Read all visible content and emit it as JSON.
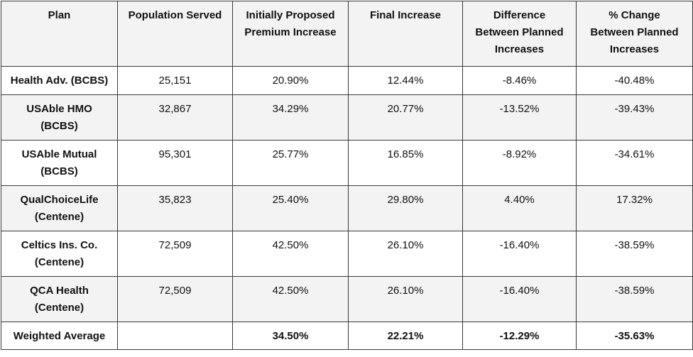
{
  "table": {
    "header": [
      "Plan",
      "Population Served",
      "Initially Proposed\nPremium Increase",
      "Final Increase",
      "Difference\nBetween Planned\nIncreases",
      "% Change\nBetween Planned\nIncreases"
    ],
    "rows": [
      [
        "Health Adv. (BCBS)",
        "25,151",
        "20.90%",
        "12.44%",
        "-8.46%",
        "-40.48%"
      ],
      [
        "USAble HMO\n(BCBS)",
        "32,867",
        "34.29%",
        "20.77%",
        "-13.52%",
        "-39.43%"
      ],
      [
        "USAble Mutual\n(BCBS)",
        "95,301",
        "25.77%",
        "16.85%",
        "-8.92%",
        "-34.61%"
      ],
      [
        "QualChoiceLife\n(Centene)",
        "35,823",
        "25.40%",
        "29.80%",
        "4.40%",
        "17.32%"
      ],
      [
        "Celtics Ins. Co.\n(Centene)",
        "72,509",
        "42.50%",
        "26.10%",
        "-16.40%",
        "-38.59%"
      ],
      [
        "QCA Health\n(Centene)",
        "72,509",
        "42.50%",
        "26.10%",
        "-16.40%",
        "-38.59%"
      ]
    ],
    "footer": {
      "plan": "Weighted Average",
      "initial": "34.50%",
      "final": "22.21%",
      "difference": "-12.29%",
      "pct_change": "-35.63%"
    }
  }
}
